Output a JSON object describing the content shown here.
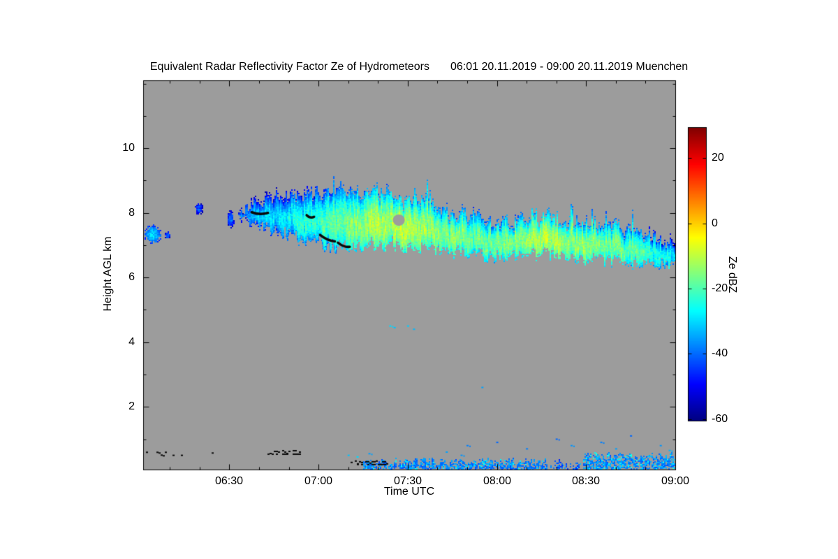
{
  "chart_data": {
    "type": "heatmap",
    "title": "Equivalent Radar Reflectivity Factor Ze of Hydrometeors",
    "subtitle": "06:01 20.11.2019 - 09:00 20.11.2019 Muenchen",
    "xlabel": "Time UTC",
    "ylabel": "Height AGL km",
    "x_range_minutes": [
      361,
      540
    ],
    "x_tick_labels": [
      "06:30",
      "07:00",
      "07:30",
      "08:00",
      "08:30",
      "09:00"
    ],
    "x_tick_minutes": [
      390,
      420,
      450,
      480,
      510,
      540
    ],
    "x_minor_step_minutes": 10,
    "y_range_km": [
      0.06,
      12.1
    ],
    "y_ticks": [
      2,
      4,
      6,
      8,
      10
    ],
    "y_minor_step_km": 1,
    "no_data_color": "#9c9c9c",
    "colorbar": {
      "label": "Ze dBZ",
      "range": [
        -60.5,
        29.5
      ],
      "ticks": [
        20,
        0,
        -20,
        -40,
        -60
      ],
      "colormap": "jet"
    },
    "cloud_bands": {
      "main": [
        [
          393,
          8.05,
          7.85,
          -40
        ],
        [
          397,
          8.3,
          7.7,
          -34
        ],
        [
          402,
          8.5,
          7.5,
          -30
        ],
        [
          407,
          8.55,
          7.35,
          -28
        ],
        [
          412,
          8.6,
          7.2,
          -26
        ],
        [
          417,
          8.65,
          7.1,
          -24
        ],
        [
          422,
          8.7,
          7.0,
          -21
        ],
        [
          427,
          8.75,
          6.95,
          -18
        ],
        [
          432,
          8.8,
          6.95,
          -15
        ],
        [
          437,
          8.75,
          7.0,
          -13
        ],
        [
          442,
          8.6,
          7.0,
          -12
        ],
        [
          447,
          8.5,
          6.95,
          -11
        ],
        [
          452,
          8.4,
          6.9,
          -12
        ],
        [
          457,
          8.3,
          6.85,
          -13
        ],
        [
          462,
          8.15,
          6.8,
          -14
        ],
        [
          467,
          8.0,
          6.75,
          -16
        ],
        [
          472,
          7.95,
          6.7,
          -17
        ],
        [
          477,
          7.85,
          6.6,
          -18
        ],
        [
          482,
          7.8,
          6.6,
          -17
        ],
        [
          487,
          7.8,
          6.65,
          -15
        ],
        [
          492,
          7.9,
          6.7,
          -12
        ],
        [
          497,
          7.85,
          6.7,
          -10
        ],
        [
          502,
          7.8,
          6.65,
          -12
        ],
        [
          507,
          7.75,
          6.6,
          -14
        ],
        [
          512,
          7.7,
          6.55,
          -14
        ],
        [
          517,
          7.6,
          6.5,
          -16
        ],
        [
          522,
          7.55,
          6.45,
          -18
        ],
        [
          527,
          7.45,
          6.4,
          -20
        ],
        [
          532,
          7.35,
          6.35,
          -23
        ],
        [
          537,
          7.2,
          6.3,
          -26
        ],
        [
          540,
          7.1,
          6.3,
          -29
        ]
      ],
      "underhang": [
        [
          404,
          7.6,
          7.45,
          -38
        ],
        [
          410,
          7.55,
          7.3,
          -36
        ],
        [
          416,
          7.45,
          7.15,
          -37
        ],
        [
          421,
          7.3,
          7.0,
          -38
        ],
        [
          426,
          7.15,
          6.9,
          -40
        ]
      ]
    },
    "patches": [
      {
        "t0": 361,
        "t1": 367,
        "h0": 7.05,
        "h1": 7.65,
        "v": -30
      },
      {
        "t0": 368,
        "t1": 370,
        "h0": 7.2,
        "h1": 7.45,
        "v": -40
      },
      {
        "t0": 378,
        "t1": 381,
        "h0": 7.95,
        "h1": 8.35,
        "v": -42
      },
      {
        "t0": 389,
        "t1": 391.5,
        "h0": 7.55,
        "h1": 8.1,
        "v": -38
      }
    ],
    "holes": [
      {
        "t0": 445,
        "t1": 449,
        "h0": 7.6,
        "h1": 7.95
      }
    ],
    "flight_tracks_black": [
      [
        397.5,
        8.02,
        403,
        8.0
      ],
      [
        416,
        7.93,
        418.5,
        7.88
      ],
      [
        420.5,
        7.32,
        425.5,
        7.12
      ],
      [
        426.5,
        7.08,
        430.5,
        6.95
      ]
    ],
    "ground_clutter_black": [
      {
        "t0": 362,
        "t1": 369,
        "h": 0.55,
        "d": 0.5
      },
      {
        "t0": 371,
        "t1": 374,
        "h": 0.5,
        "d": 0.3
      },
      {
        "t0": 382,
        "t1": 385,
        "h": 0.55,
        "d": 0.3
      },
      {
        "t0": 403,
        "t1": 414,
        "h": 0.6,
        "d": 0.85
      },
      {
        "t0": 425,
        "t1": 427,
        "h": 0.33,
        "d": 0.6
      },
      {
        "t0": 431,
        "t1": 443,
        "h": 0.28,
        "d": 0.85
      }
    ],
    "ground_precip_blue": [
      {
        "t0": 435,
        "t1": 497,
        "h0": 0.1,
        "h1": 0.33,
        "v": -38,
        "p": 0.3
      },
      {
        "t0": 498,
        "t1": 508,
        "h0": 0.1,
        "h1": 0.3,
        "v": -42,
        "p": 0.6
      },
      {
        "t0": 509,
        "t1": 540,
        "h0": 0.1,
        "h1": 0.5,
        "v": -37,
        "p": 0.35
      }
    ],
    "specks": [
      [
        437,
        0.55,
        -35
      ],
      [
        444,
        4.5,
        -30
      ],
      [
        445.5,
        4.45,
        -32
      ],
      [
        450,
        4.5,
        -31
      ],
      [
        452,
        4.4,
        -33
      ],
      [
        463,
        0.6,
        -35
      ],
      [
        468,
        0.5,
        -36
      ],
      [
        470,
        0.8,
        -38
      ],
      [
        475,
        2.6,
        -35
      ],
      [
        480,
        0.9,
        -40
      ],
      [
        490,
        0.7,
        -38
      ],
      [
        500,
        1.0,
        -40
      ],
      [
        505,
        0.8,
        -36
      ],
      [
        515,
        0.9,
        -38
      ],
      [
        520,
        0.7,
        -35
      ],
      [
        525,
        1.1,
        -40
      ],
      [
        430,
        0.5,
        -32
      ],
      [
        433,
        0.45,
        -30
      ],
      [
        535,
        0.8,
        -36
      ],
      [
        538,
        0.65,
        -33
      ]
    ]
  }
}
